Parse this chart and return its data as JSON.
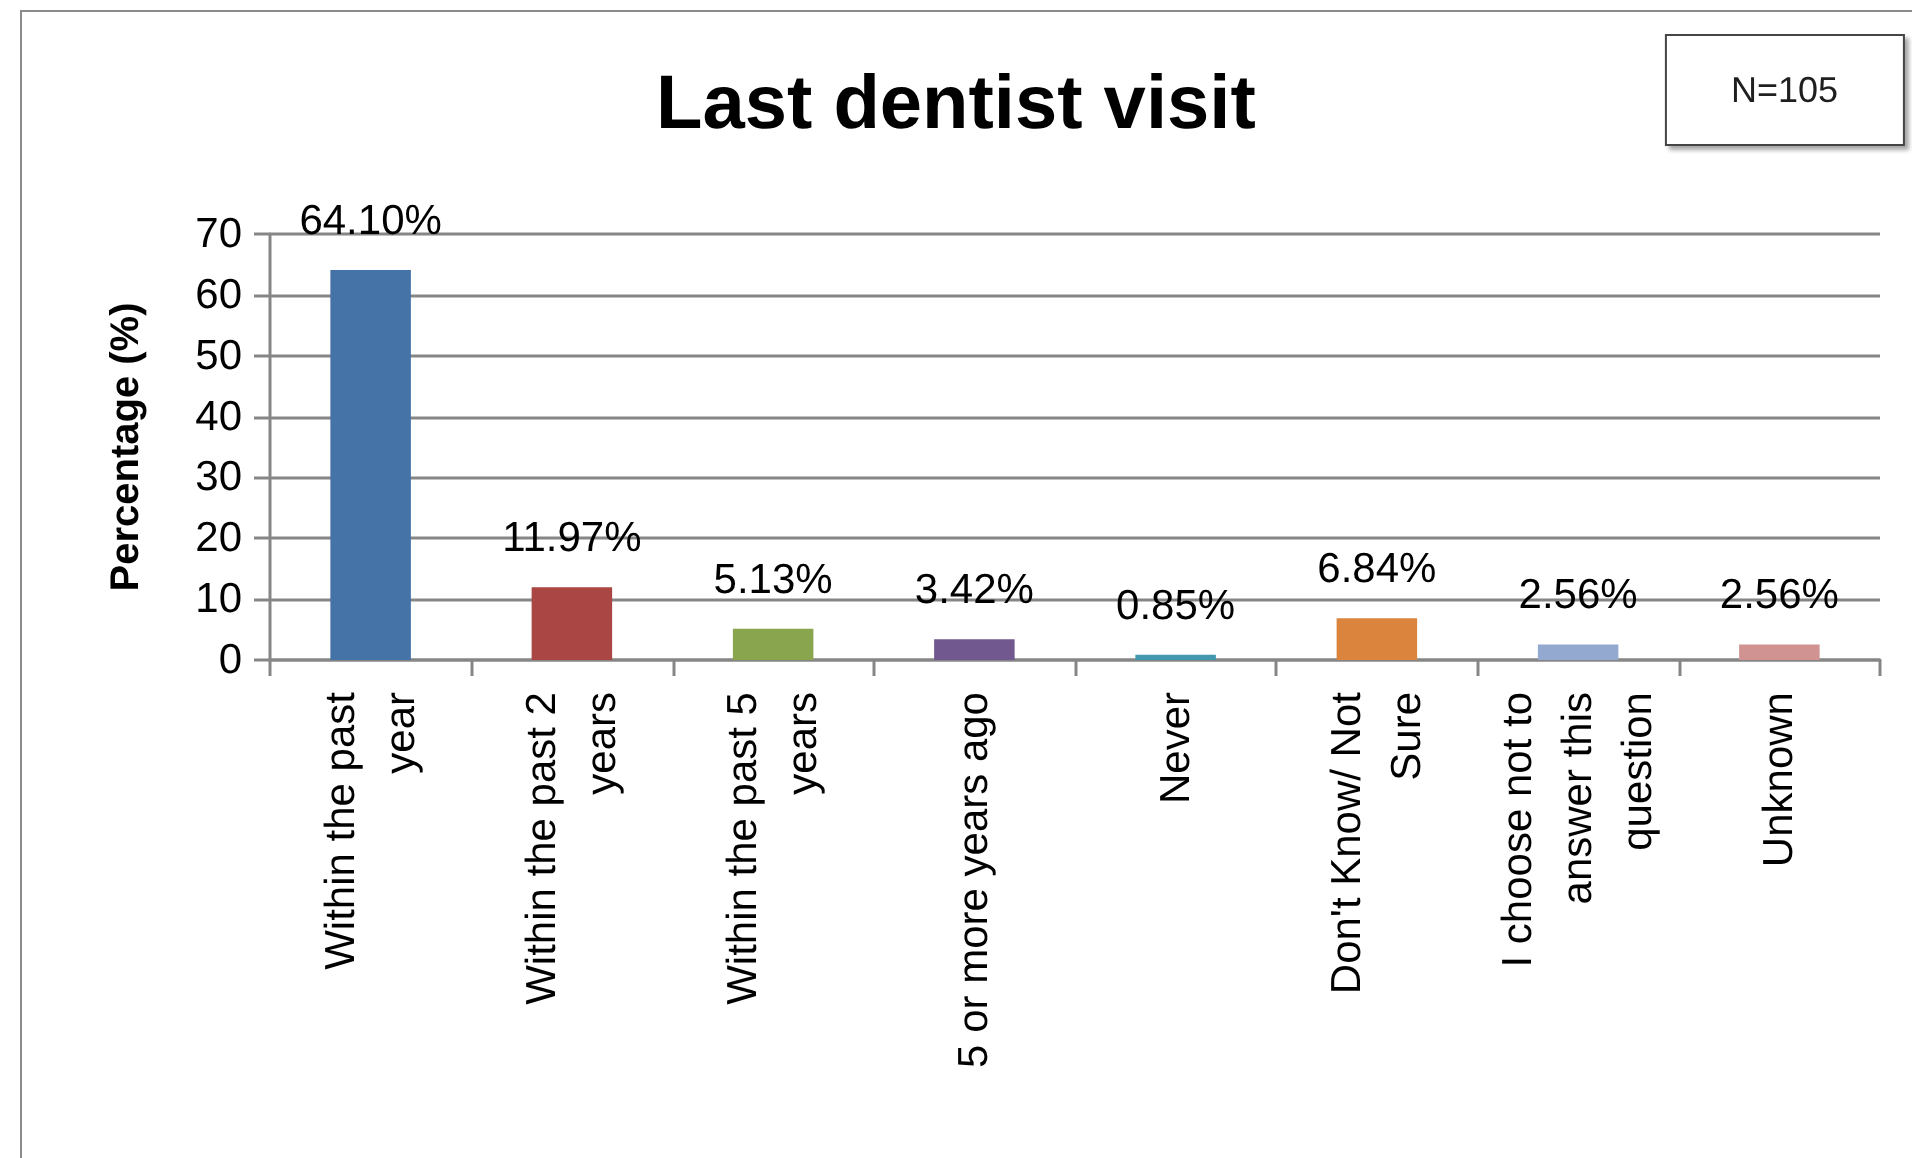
{
  "chart_data": {
    "type": "bar",
    "title": "Last dentist visit",
    "ylabel": "Percentage (%)",
    "annotations": [
      "N=105"
    ],
    "categories": [
      "Within the past\nyear",
      "Within the past 2\nyears",
      "Within the past 5\nyears",
      "5 or more years ago",
      "Never",
      "Don't Know/ Not\nSure",
      "I choose not to\nanswer this\nquestion",
      "Unknown"
    ],
    "values": [
      64.1,
      11.97,
      5.13,
      3.42,
      0.85,
      6.84,
      2.56,
      2.56
    ],
    "colors": [
      "#4572a7",
      "#aa4643",
      "#89a54e",
      "#71588f",
      "#4198af",
      "#db843d",
      "#93a9cf",
      "#d19392"
    ],
    "value_labels": [
      "64.10%",
      "11.97%",
      "5.13%",
      "3.42%",
      "0.85%",
      "6.84%",
      "2.56%",
      "2.56%"
    ],
    "ylim": [
      0,
      70
    ],
    "yticks": [
      0,
      10,
      20,
      30,
      40,
      50,
      60,
      70
    ],
    "grid": "y"
  }
}
